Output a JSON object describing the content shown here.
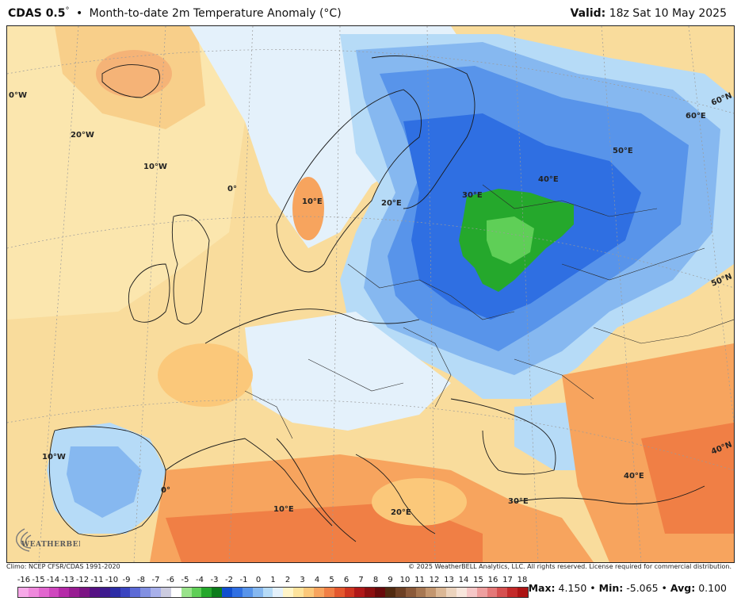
{
  "header": {
    "title_main": "CDAS 0.5",
    "title_degree": "°",
    "separator": "•",
    "title_desc": "Month-to-date 2m Temperature Anomaly (°C)",
    "valid_label": "Valid:",
    "valid_value": "18z Sat 10 May 2025"
  },
  "map": {
    "region": "Europe",
    "variable": "2m temperature anomaly",
    "units": "°C",
    "graticule_labels": [
      {
        "text": "0°W"
      },
      {
        "text": "20°W"
      },
      {
        "text": "10°W"
      },
      {
        "text": "0°"
      },
      {
        "text": "10°E"
      },
      {
        "text": "20°E"
      },
      {
        "text": "30°E"
      },
      {
        "text": "40°E"
      },
      {
        "text": "50°E"
      },
      {
        "text": "60°E"
      },
      {
        "text": "60°N"
      },
      {
        "text": "50°N"
      },
      {
        "text": "40°N"
      },
      {
        "text": "10°W"
      },
      {
        "text": "0°"
      },
      {
        "text": "10°E"
      },
      {
        "text": "20°E"
      },
      {
        "text": "30°E"
      },
      {
        "text": "40°E"
      }
    ]
  },
  "logo": {
    "text": "WEATHERBELL"
  },
  "footer": {
    "climo": "Climo: NCEP CFSR/CDAS 1991-2020",
    "copyright": "© 2025 WeatherBELL Analytics, LLC. All rights reserved. License required for commercial distribution."
  },
  "scale": {
    "labels": [
      "-16",
      "-15",
      "-14",
      "-13",
      "-12",
      "-11",
      "-10",
      "-9",
      "-8",
      "-7",
      "-6",
      "-5",
      "-4",
      "-3",
      "-2",
      "-1",
      "0",
      "1",
      "2",
      "3",
      "4",
      "5",
      "6",
      "7",
      "8",
      "9",
      "10",
      "11",
      "12",
      "13",
      "14",
      "15",
      "16",
      "17",
      "18"
    ],
    "colors": [
      "#f7a8e8",
      "#ef88dc",
      "#e266cf",
      "#cf46be",
      "#b52aa8",
      "#981c92",
      "#7c1484",
      "#561184",
      "#3e1a8e",
      "#2c2ca6",
      "#3a44c0",
      "#5c6ad6",
      "#8290e2",
      "#a8b0ea",
      "#cccce0",
      "#ffffff",
      "#9ae38c",
      "#5fcf57",
      "#25a82c",
      "#0c7c1c",
      "#104fd0",
      "#2f6fe2",
      "#5894ea",
      "#86b8f0",
      "#b6dbf7",
      "#e4f1fb",
      "#fff4c8",
      "#fde39c",
      "#fbc87a",
      "#f7a45e",
      "#f07f45",
      "#e4582e",
      "#cf3520",
      "#b01818",
      "#8c0f10",
      "#680a0b",
      "#512a10",
      "#6d4024",
      "#8b5a3a",
      "#a77752",
      "#c3966f",
      "#dbb795",
      "#ecd3bd",
      "#f8e6dc",
      "#f6c7c7",
      "#ee9f9f",
      "#e47878",
      "#d65050",
      "#c42a2a",
      "#ad1414"
    ],
    "neg_max": -16,
    "pos_max": 18
  },
  "stats": {
    "max_label": "Max:",
    "max_value": "4.150",
    "min_label": "Min:",
    "min_value": "-5.065",
    "avg_label": "Avg:",
    "avg_value": "0.100",
    "sep": "•"
  }
}
